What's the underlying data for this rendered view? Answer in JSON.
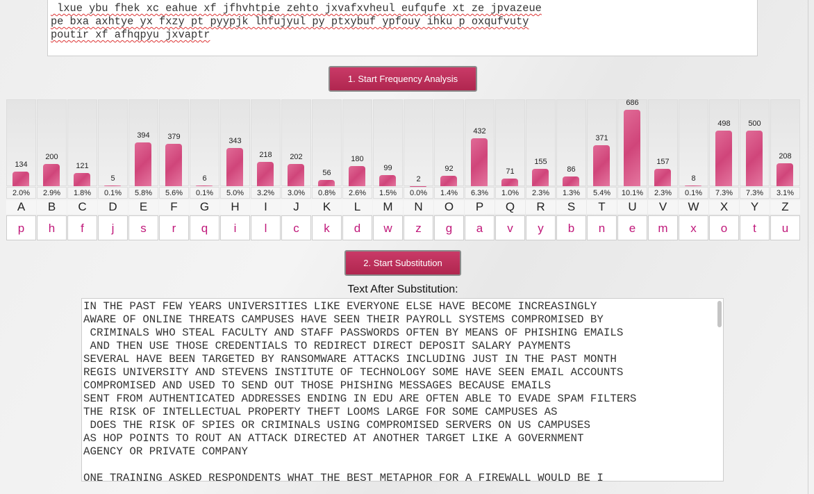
{
  "cipher_text": {
    "lines": [
      " lxue ybu fhek xc eahue xf jfhvhtpie zehto jxvafxvheul eufqufe xt ze jpvazeue",
      "pe bxa axhtye yx fxzy pt pyypjk lhfujyul py ptxybuf ypfouy ihku p oxqufvuty",
      "poutir xf afhqpyu jxvaptr"
    ]
  },
  "buttons": {
    "analyze": "1. Start Frequency Analysis",
    "substitute": "2. Start Substitution"
  },
  "chart_data": {
    "type": "bar",
    "color": "#d94f84",
    "categories": [
      "A",
      "B",
      "C",
      "D",
      "E",
      "F",
      "G",
      "H",
      "I",
      "J",
      "K",
      "L",
      "M",
      "N",
      "O",
      "P",
      "Q",
      "R",
      "S",
      "T",
      "U",
      "V",
      "W",
      "X",
      "Y",
      "Z"
    ],
    "values": [
      134,
      200,
      121,
      5,
      394,
      379,
      6,
      343,
      218,
      202,
      56,
      180,
      99,
      2,
      92,
      432,
      71,
      155,
      86,
      371,
      686,
      157,
      8,
      498,
      500,
      208
    ],
    "percent_labels": [
      "2.0%",
      "2.9%",
      "1.8%",
      "0.1%",
      "5.8%",
      "5.6%",
      "0.1%",
      "5.0%",
      "3.2%",
      "3.0%",
      "0.8%",
      "2.6%",
      "1.5%",
      "0.0%",
      "1.4%",
      "6.3%",
      "1.0%",
      "2.3%",
      "1.3%",
      "5.4%",
      "10.1%",
      "2.3%",
      "0.1%",
      "7.3%",
      "7.3%",
      "3.1%"
    ],
    "substitutions": [
      "p",
      "h",
      "f",
      "j",
      "s",
      "r",
      "q",
      "i",
      "l",
      "c",
      "k",
      "d",
      "w",
      "z",
      "g",
      "a",
      "v",
      "y",
      "b",
      "n",
      "e",
      "m",
      "x",
      "o",
      "t",
      "u"
    ]
  },
  "output": {
    "label": "Text After Substitution:",
    "paragraphs": [
      [
        "IN THE PAST FEW YEARS UNIVERSITIES LIKE EVERYONE ELSE HAVE BECOME INCREASINGLY",
        "AWARE OF ONLINE THREATS CAMPUSES HAVE SEEN THEIR PAYROLL SYSTEMS COMPROMISED BY",
        " CRIMINALS WHO STEAL FACULTY AND STAFF PASSWORDS OFTEN BY MEANS OF PHISHING EMAILS",
        " AND THEN USE THOSE CREDENTIALS TO REDIRECT DIRECT DEPOSIT SALARY PAYMENTS",
        "SEVERAL HAVE BEEN TARGETED BY RANSOMWARE ATTACKS INCLUDING JUST IN THE PAST MONTH",
        "REGIS UNIVERSITY AND STEVENS INSTITUTE OF TECHNOLOGY SOME HAVE SEEN EMAIL ACCOUNTS",
        "COMPROMISED AND USED TO SEND OUT THOSE PHISHING MESSAGES BECAUSE EMAILS",
        "SENT FROM AUTHENTICATED ADDRESSES ENDING IN EDU ARE OFTEN ABLE TO EVADE SPAM FILTERS",
        "THE RISK OF INTELLECTUAL PROPERTY THEFT LOOMS LARGE FOR SOME CAMPUSES AS",
        " DOES THE RISK OF SPIES OR CRIMINALS USING COMPROMISED SERVERS ON US CAMPUSES",
        "AS HOP POINTS TO ROUT AN ATTACK DIRECTED AT ANOTHER TARGET LIKE A GOVERNMENT",
        "AGENCY OR PRIVATE COMPANY"
      ],
      [
        "ONE TRAINING ASKED RESPONDENTS WHAT THE BEST METAPHOR FOR A FIREWALL WOULD BE I"
      ]
    ]
  }
}
